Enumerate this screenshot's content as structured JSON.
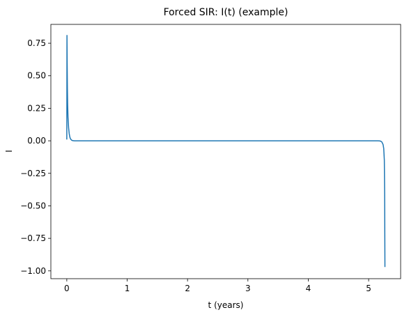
{
  "chart_data": {
    "type": "line",
    "title": "Forced SIR: I(t) (example)",
    "xlabel": "t (years)",
    "ylabel": "I",
    "xlim": [
      -0.264,
      5.53
    ],
    "ylim": [
      -1.06,
      0.895
    ],
    "xticks": [
      0,
      1,
      2,
      3,
      4,
      5
    ],
    "xtick_labels": [
      "0",
      "1",
      "2",
      "3",
      "4",
      "5"
    ],
    "yticks": [
      -1.0,
      -0.75,
      -0.5,
      -0.25,
      0.0,
      0.25,
      0.5,
      0.75
    ],
    "ytick_labels": [
      "−1.00",
      "−0.75",
      "−0.50",
      "−0.25",
      "0.00",
      "0.25",
      "0.50",
      "0.75"
    ],
    "grid": false,
    "series": [
      {
        "color": "#1f77b4",
        "x": [
          0.0,
          0.003,
          0.006,
          0.01,
          0.014,
          0.02,
          0.03,
          0.04,
          0.05,
          0.06,
          0.08,
          0.1,
          0.13,
          0.17,
          0.25,
          0.5,
          1.0,
          2.0,
          3.0,
          4.0,
          5.0,
          5.1,
          5.15,
          5.18,
          5.2,
          5.22,
          5.24,
          5.25,
          5.26,
          5.265,
          5.27
        ],
        "y": [
          0.01,
          0.81,
          0.6,
          0.4,
          0.28,
          0.18,
          0.1,
          0.055,
          0.03,
          0.015,
          0.005,
          0.001,
          0.0,
          0.0,
          0.0,
          0.0,
          0.0,
          0.0,
          0.0,
          0.0,
          0.0,
          0.0,
          0.0,
          -0.001,
          -0.003,
          -0.01,
          -0.03,
          -0.06,
          -0.15,
          -0.4,
          -0.97
        ]
      }
    ]
  }
}
